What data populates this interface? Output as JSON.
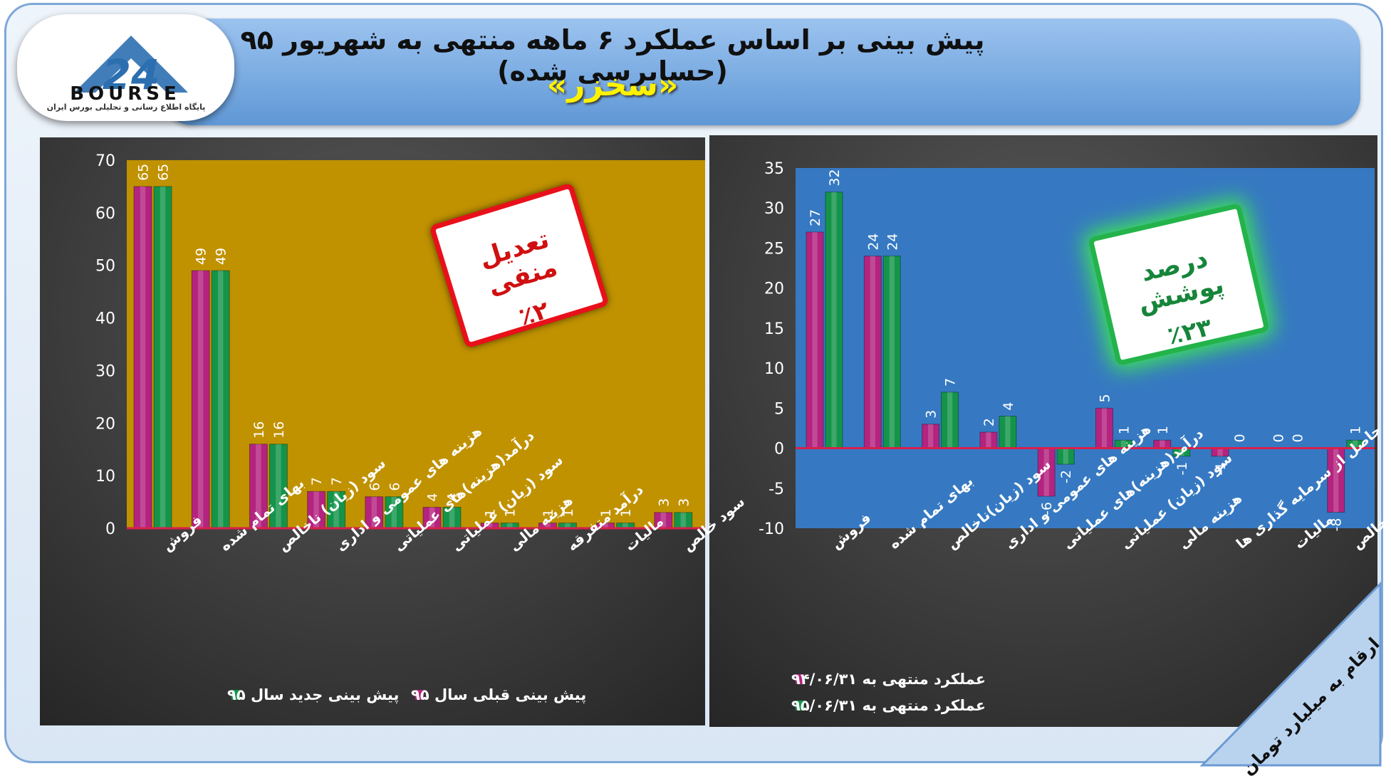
{
  "header": {
    "title": "پیش بینی بر اساس عملکرد ۶ ماهه منتهی به شهریور ۹۵ (حسابرسی شده)",
    "company": "«سخزر»"
  },
  "logo": {
    "brand": "BOURSE",
    "number": "24",
    "subtitle": "پایگاه اطلاع رسانی و تحلیلی بورس ایران"
  },
  "stamps": {
    "left": {
      "label": "تعدیل منفی",
      "value": "٪۲"
    },
    "right": {
      "label": "درصد پوشش",
      "value": "٪۲۳"
    }
  },
  "unit_note": "ارقام به میلیارد تومان",
  "colors": {
    "magenta": "#b4237f",
    "green": "#14944a",
    "left_plot_bg": "#c09200",
    "right_plot_bg": "#3679c2",
    "zero_line": "#d8204a"
  },
  "chart_data": [
    {
      "type": "bar",
      "categories": [
        "فروش",
        "بهای تمام شده",
        "سود (زیان) ناخالص",
        "هزینه های عمومی و اداری",
        "درآمد(هزینه)های عملیاتی",
        "سود (زیان) عملیاتی",
        "هزینه مالی",
        "درآمد متفرقه",
        "مالیات",
        "سود خالص"
      ],
      "series": [
        {
          "name": "پیش بینی قبلی سال ۹۵",
          "values": [
            65,
            49,
            16,
            7,
            6,
            4,
            1,
            1,
            1,
            3
          ]
        },
        {
          "name": "پیش بینی جدید سال ۹۵",
          "values": [
            65,
            49,
            16,
            7,
            6,
            4,
            1,
            1,
            1,
            3
          ]
        }
      ],
      "ylim": [
        0,
        70
      ],
      "yticks": [
        0,
        10,
        20,
        30,
        40,
        50,
        60,
        70
      ],
      "legend": "bottom"
    },
    {
      "type": "bar",
      "categories": [
        "فروش",
        "بهای تمام شده",
        "سود (زیان)ناخالص",
        "هزینه های عمومی و اداری",
        "درآمد(هزینه)های عملیاتی",
        "سود (زیان) عملیاتی",
        "هزینه مالی",
        "درآمد حاصل از سرمایه گذاری ها",
        "مالیات",
        "سود خالص"
      ],
      "series": [
        {
          "name": "عملکرد منتهی به ۹۴/۰۶/۳۱",
          "values": [
            27,
            24,
            3,
            2,
            -6,
            5,
            1,
            -1,
            0,
            -8
          ]
        },
        {
          "name": "عملکرد منتهی به ۹۵/۰۶/۳۱",
          "values": [
            32,
            24,
            7,
            4,
            -2,
            1,
            -1,
            0,
            0,
            1
          ]
        }
      ],
      "ylim": [
        -10,
        35
      ],
      "yticks": [
        -10,
        -5,
        0,
        5,
        10,
        15,
        20,
        25,
        30,
        35
      ],
      "legend": "bottom"
    }
  ]
}
